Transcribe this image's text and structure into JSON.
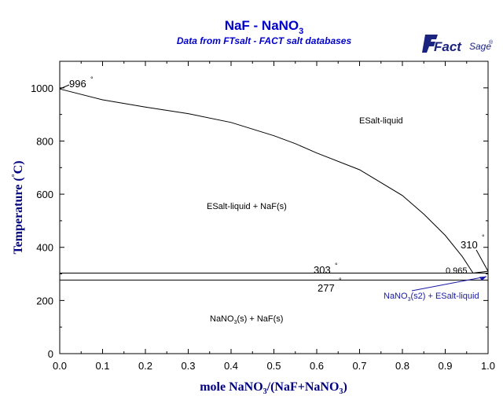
{
  "chart_data": {
    "type": "line",
    "title": "NaF - NaNO",
    "title_sub": "3",
    "subtitle": "Data from FTsalt - FACT salt databases",
    "xlabel": "mole NaNO",
    "xlabel_sub": "3",
    "xlabel_rest": "/(NaF+NaNO",
    "xlabel_sub2": "3",
    "xlabel_end": ")",
    "ylabel": "Temperature (",
    "ylabel_deg": "°",
    "ylabel_end": "C)",
    "xlim": [
      0,
      1
    ],
    "ylim": [
      0,
      1100
    ],
    "x_ticks": [
      "0.0",
      "0.1",
      "0.2",
      "0.3",
      "0.4",
      "0.5",
      "0.6",
      "0.7",
      "0.8",
      "0.9",
      "1.0"
    ],
    "y_ticks": [
      "0",
      "200",
      "400",
      "600",
      "800",
      "1000"
    ],
    "grid": false,
    "colors": {
      "title": "#0000cc",
      "axes": "#000000",
      "curve": "#000000",
      "arrow": "#1a1aa6",
      "logo": "#1a237e"
    },
    "liquidus": [
      [
        0,
        996
      ],
      [
        0.1,
        955
      ],
      [
        0.2,
        928
      ],
      [
        0.3,
        903
      ],
      [
        0.4,
        870
      ],
      [
        0.5,
        820
      ],
      [
        0.55,
        790
      ],
      [
        0.6,
        755
      ],
      [
        0.7,
        692
      ],
      [
        0.8,
        595
      ],
      [
        0.85,
        525
      ],
      [
        0.9,
        445
      ],
      [
        0.94,
        365
      ],
      [
        0.965,
        303
      ],
      [
        1.0,
        310
      ]
    ],
    "isotherm_eutectic": 303,
    "isotherm_transition": 277,
    "annotations": {
      "t996": "996",
      "t303": "303",
      "t277": "277",
      "t310": "310",
      "x0965": "0.965",
      "deg": "°"
    },
    "regions": {
      "liquid": "ESalt-liquid",
      "liquid_naf": "ESalt-liquid + NaF(s)",
      "solid_a": "NaNO",
      "solid_sub": "3",
      "solid_b": "(s) + NaF(s)",
      "s2_a": "NaNO",
      "s2_sub": "3",
      "s2_b": "(s2) + ESalt-liquid"
    },
    "logo": {
      "word1": "Fact",
      "word2": "Sage",
      "mark": "®"
    }
  }
}
